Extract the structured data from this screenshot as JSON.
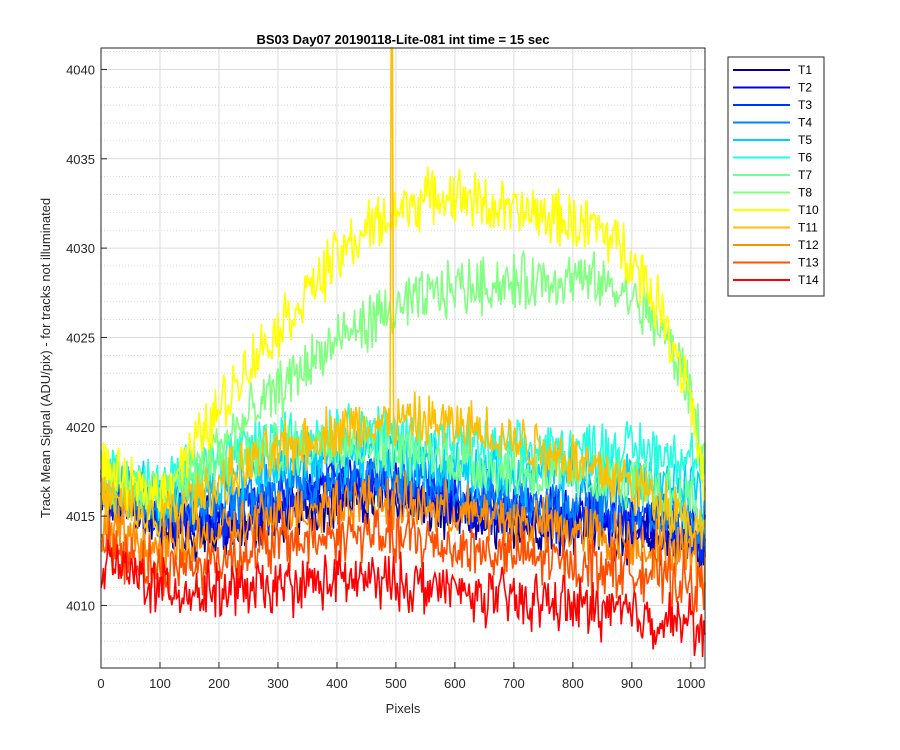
{
  "chart_data": {
    "type": "line",
    "title": "BS03 Day07 20190118-Lite-081 int time = 15 sec",
    "xlabel": "Pixels",
    "ylabel": "Track Mean Signal (ADU/pix) - for tracks not illuminated",
    "xlim": [
      0,
      1024
    ],
    "ylim": [
      4006.5,
      4041.2
    ],
    "x_ticks": [
      0,
      100,
      200,
      300,
      400,
      500,
      600,
      700,
      800,
      900,
      1000
    ],
    "y_ticks": [
      4010,
      4015,
      4020,
      4025,
      4030,
      4035,
      4040
    ],
    "grid": true,
    "minor_grid": true,
    "legend_position": "outside-top-right",
    "x_sample_points": [
      0,
      50,
      100,
      150,
      200,
      250,
      300,
      350,
      400,
      450,
      500,
      550,
      600,
      650,
      700,
      750,
      800,
      850,
      900,
      950,
      1000,
      1024
    ],
    "series": [
      {
        "name": "T1",
        "color": "#00008f",
        "values": [
          4016,
          4015.5,
          4014.5,
          4014,
          4014,
          4014.5,
          4015,
          4015.5,
          4016,
          4016,
          4016,
          4015.5,
          4015,
          4014.8,
          4014.5,
          4014.5,
          4014.5,
          4014.3,
          4014,
          4013.8,
          4013.5,
          4013
        ]
      },
      {
        "name": "T2",
        "color": "#0000df",
        "values": [
          4016.3,
          4015.8,
          4015,
          4014.8,
          4014.8,
          4015,
          4015.5,
          4016,
          4016.5,
          4016.5,
          4016.3,
          4016,
          4015.5,
          4015.2,
          4015,
          4015,
          4015,
          4014.8,
          4014.5,
          4014.3,
          4014,
          4013.5
        ]
      },
      {
        "name": "T3",
        "color": "#0030ff",
        "values": [
          4016.5,
          4016,
          4015.3,
          4015,
          4015,
          4015.3,
          4015.8,
          4016.2,
          4016.8,
          4016.8,
          4016.5,
          4016.2,
          4015.8,
          4015.5,
          4015.3,
          4015.2,
          4015.2,
          4015,
          4014.8,
          4014.5,
          4014.2,
          4013.8
        ]
      },
      {
        "name": "T4",
        "color": "#0080ff",
        "values": [
          4016.8,
          4016.3,
          4015.5,
          4015.5,
          4015.8,
          4016,
          4016.5,
          4017,
          4017.3,
          4017.3,
          4017,
          4016.8,
          4016.5,
          4016.3,
          4016,
          4016,
          4016,
          4015.8,
          4015.5,
          4015.3,
          4015,
          4014.5
        ]
      },
      {
        "name": "T5",
        "color": "#00cfff",
        "values": [
          4017,
          4016.5,
          4016,
          4016.5,
          4017,
          4017.5,
          4018,
          4018.3,
          4018.5,
          4018.5,
          4018.3,
          4018,
          4017.8,
          4017.5,
          4017.3,
          4017.3,
          4017.5,
          4017.5,
          4017.3,
          4017,
          4016.8,
          4016
        ]
      },
      {
        "name": "T6",
        "color": "#20ffdf",
        "values": [
          4017.5,
          4017,
          4016.5,
          4017.5,
          4018.3,
          4018.8,
          4019.3,
          4019.6,
          4019.8,
          4019.8,
          4019.6,
          4019.3,
          4019,
          4018.8,
          4018.6,
          4018.6,
          4018.8,
          4018.8,
          4018.8,
          4018.6,
          4018.3,
          4017.5
        ]
      },
      {
        "name": "T7",
        "color": "#70ff8f",
        "values": [
          4017.3,
          4016.8,
          4016.3,
          4017,
          4017.8,
          4018.3,
          4018.8,
          4019,
          4019.2,
          4019,
          4018.8,
          4018.5,
          4018.2,
          4017.8,
          4017.5,
          4017.3,
          4017.2,
          4017,
          4016.8,
          4016.5,
          4016,
          4014.5
        ]
      },
      {
        "name": "T8",
        "color": "#80ff80",
        "values": [
          4017.5,
          4016.5,
          4016,
          4017.5,
          4019,
          4020.5,
          4022,
          4023.5,
          4024.8,
          4025.8,
          4026.5,
          4027.2,
          4027.8,
          4028,
          4028,
          4028.2,
          4028.3,
          4028,
          4027.2,
          4025.5,
          4022,
          4018
        ]
      },
      {
        "name": "T10",
        "color": "#ffff00",
        "values": [
          4017.8,
          4016.5,
          4016.3,
          4018.5,
          4021,
          4023.5,
          4025.5,
          4027.5,
          4029.5,
          4031,
          4032,
          4032.8,
          4033,
          4032.5,
          4032,
          4031.8,
          4031.5,
          4031,
          4029.5,
          4026.5,
          4022,
          4016
        ]
      },
      {
        "name": "T11",
        "color": "#ffbf00",
        "values": [
          4016,
          4015.2,
          4014.8,
          4015.8,
          4016.8,
          4017.8,
          4018.5,
          4019.2,
          4019.8,
          4020,
          4020.2,
          4020.3,
          4020,
          4019.8,
          4019.3,
          4018.8,
          4018.2,
          4017.5,
          4016.8,
          4015.8,
          4014.8,
          4013.5
        ]
      },
      {
        "name": "T12",
        "color": "#ff8f00",
        "values": [
          4014.5,
          4013.8,
          4013,
          4013.5,
          4014,
          4014.5,
          4015,
          4015.5,
          4015.8,
          4015.8,
          4015.8,
          4015.5,
          4015.2,
          4015,
          4014.8,
          4014.5,
          4014.2,
          4014,
          4013.6,
          4013.2,
          4012.8,
          4012
        ]
      },
      {
        "name": "T13",
        "color": "#ff4f00",
        "values": [
          4013.5,
          4012.8,
          4012,
          4012.2,
          4012.6,
          4013,
          4013.4,
          4013.7,
          4014,
          4014,
          4013.8,
          4013.6,
          4013.3,
          4013,
          4012.8,
          4012.6,
          4012.4,
          4012.2,
          4012,
          4011.6,
          4011.2,
          4010.5
        ]
      },
      {
        "name": "T14",
        "color": "#ff0000",
        "values": [
          4012.5,
          4011.8,
          4011,
          4010.8,
          4010.8,
          4010.8,
          4011,
          4011.2,
          4011.4,
          4011.4,
          4011.3,
          4011.1,
          4010.8,
          4010.5,
          4010.3,
          4010.2,
          4010,
          4009.8,
          4009.5,
          4009.2,
          4009,
          4008.5
        ]
      }
    ],
    "annotations": [
      {
        "series": "T11",
        "type": "spike",
        "x": 493,
        "y": 4041.2,
        "note": "narrow spike at x≈493"
      }
    ]
  }
}
